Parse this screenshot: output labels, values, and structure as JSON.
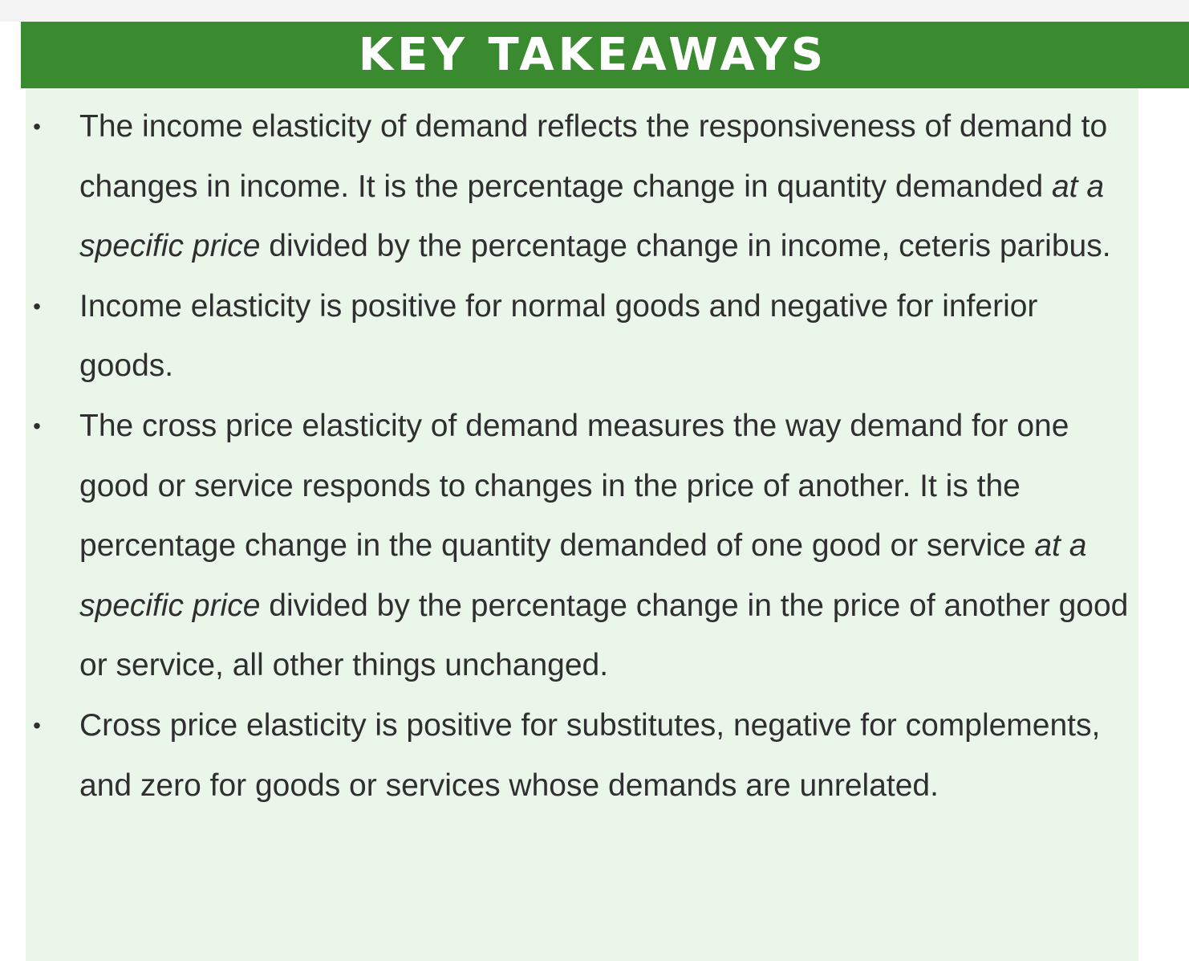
{
  "header": {
    "title": "KEY TAKEAWAYS"
  },
  "bullet_glyph": "•",
  "takeaways": [
    {
      "parts": [
        "The income elasticity of demand reflects the responsiveness of demand to changes in income. It is the percentage change in quantity demanded ",
        "at a specific price",
        " divided by the percentage change in income, ceteris paribus."
      ]
    },
    {
      "parts": [
        "Income elasticity is positive for normal goods and negative for inferior goods."
      ]
    },
    {
      "parts": [
        "The cross price elasticity of demand measures the way demand for one good or service responds to changes in the price of another. It is the percentage change in the quantity demanded of one good or service ",
        "at a specific price",
        " divided by the percentage change in the price of another good or service, all other things unchanged."
      ]
    },
    {
      "parts": [
        "Cross price elasticity is positive for substitutes, negative for complements, and zero for goods or services whose demands are unrelated."
      ]
    }
  ],
  "colors": {
    "header_background": "#3a8a2f",
    "header_text": "#ffffff",
    "panel_background": "#eaf6ea",
    "body_text": "#2f2f2f"
  }
}
